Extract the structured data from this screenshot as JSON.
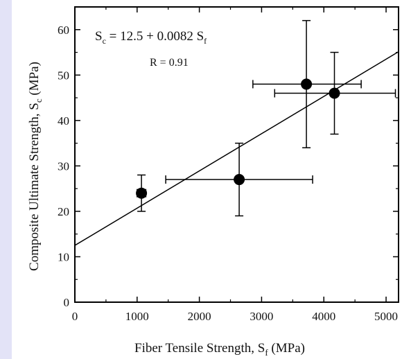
{
  "chart_data": {
    "type": "scatter",
    "title": "",
    "xlabel": "Fiber Tensile Strength, S_f (MPa)",
    "ylabel": "Composite Ultimate Strength, S_c (MPa)",
    "xlabel_parts": {
      "main": "Fiber Tensile Strength, S",
      "sub": "f",
      "unit": " (MPa)"
    },
    "ylabel_parts": {
      "main": "Composite Ultimate Strength, S",
      "sub": "c",
      "unit": " (MPa)"
    },
    "xlim": [
      0,
      5200
    ],
    "ylim": [
      0,
      65
    ],
    "x_ticks": [
      0,
      1000,
      2000,
      3000,
      4000,
      5000
    ],
    "y_ticks": [
      0,
      10,
      20,
      30,
      40,
      50,
      60
    ],
    "grid": false,
    "marker_color": "#000000",
    "points": [
      {
        "x": 1070,
        "y": 24,
        "x_err": [
          1000,
          1140
        ],
        "y_err": [
          20,
          28
        ]
      },
      {
        "x": 2640,
        "y": 27,
        "x_err": [
          1460,
          3820
        ],
        "y_err": [
          19,
          35
        ]
      },
      {
        "x": 3720,
        "y": 48,
        "x_err": [
          2860,
          4600
        ],
        "y_err": [
          34,
          62
        ]
      },
      {
        "x": 4170,
        "y": 46,
        "x_err": [
          3210,
          5150
        ],
        "y_err": [
          37,
          55
        ]
      }
    ],
    "fit_line": {
      "intercept": 12.5,
      "slope": 0.0082,
      "x_range": [
        0,
        5200
      ]
    },
    "annotations": {
      "equation_lhs": "S",
      "equation_lhs_sub": "c",
      "equation_rhs": " = 12.5 + 0.0082 S",
      "equation_rhs_sub": "f",
      "r_value": "R = 0.91"
    }
  }
}
